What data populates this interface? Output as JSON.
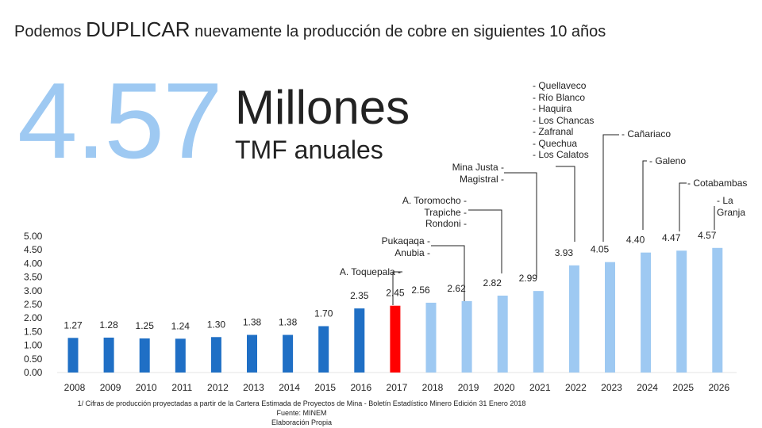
{
  "header": {
    "title_part1": "Podemos ",
    "title_emphasis": "DUPLICAR",
    "title_part2": " nuevamente la producción de cobre en siguientes 10 años"
  },
  "highlight": {
    "number": "4.57",
    "unit_main": "Millones",
    "unit_sub": "TMF anuales"
  },
  "annotations": {
    "quellaveco_group": "- Quellaveco\n- Río Blanco\n- Haquira\n- Los Chancas\n- Zafranal\n- Quechua\n- Los Calatos",
    "canariaco": "- Cañariaco",
    "galeno": "- Galeno",
    "cotabambas": "- Cotabambas",
    "la_granja": "- La\nGranja",
    "mina_justa": "Mina Justa -\nMagistral -",
    "toromocho": "A. Toromocho -\nTrapiche -\nRondoni -",
    "pukaqaqa": "Pukaqaqa -\nAnubia -",
    "toquepala": "A. Toquepala -"
  },
  "footnote": {
    "line1": "1/ Cifras de producción proyectadas a partir de la Cartera Estimada de Proyectos de Mina - Boletín Estadístico Minero Edición 31 Enero 2018",
    "line2": "Fuente: MINEM",
    "line3": "Elaboración Propia"
  },
  "colors": {
    "historical": "#1f6fc5",
    "current": "#ff0000",
    "projected": "#9ec9f2",
    "line": "#222222"
  },
  "chart_data": {
    "type": "bar",
    "title": "Podemos DUPLICAR nuevamente la producción de cobre en siguientes 10 años",
    "xlabel": "",
    "ylabel": "",
    "ylim": [
      0,
      5
    ],
    "yticks": [
      "0.00",
      "0.50",
      "1.00",
      "1.50",
      "2.00",
      "2.50",
      "3.00",
      "3.50",
      "4.00",
      "4.50",
      "5.00"
    ],
    "grid": false,
    "categories": [
      "2008",
      "2009",
      "2010",
      "2011",
      "2012",
      "2013",
      "2014",
      "2015",
      "2016",
      "2017",
      "2018",
      "2019",
      "2020",
      "2021",
      "2022",
      "2023",
      "2024",
      "2025",
      "2026"
    ],
    "values": [
      1.27,
      1.28,
      1.25,
      1.24,
      1.3,
      1.38,
      1.38,
      1.7,
      2.35,
      2.45,
      2.56,
      2.62,
      2.82,
      2.99,
      3.93,
      4.05,
      4.4,
      4.47,
      4.57
    ],
    "labels": [
      "1.27",
      "1.28",
      "1.25",
      "1.24",
      "1.30",
      "1.38",
      "1.38",
      "1.70",
      "2.35",
      "2.45",
      "2.56",
      "2.62",
      "2.82",
      "2.99",
      "3.93",
      "4.05",
      "4.40",
      "4.47",
      "4.57"
    ],
    "bar_types": [
      "historical",
      "historical",
      "historical",
      "historical",
      "historical",
      "historical",
      "historical",
      "historical",
      "historical",
      "current",
      "projected",
      "projected",
      "projected",
      "projected",
      "projected",
      "projected",
      "projected",
      "projected",
      "projected"
    ]
  }
}
